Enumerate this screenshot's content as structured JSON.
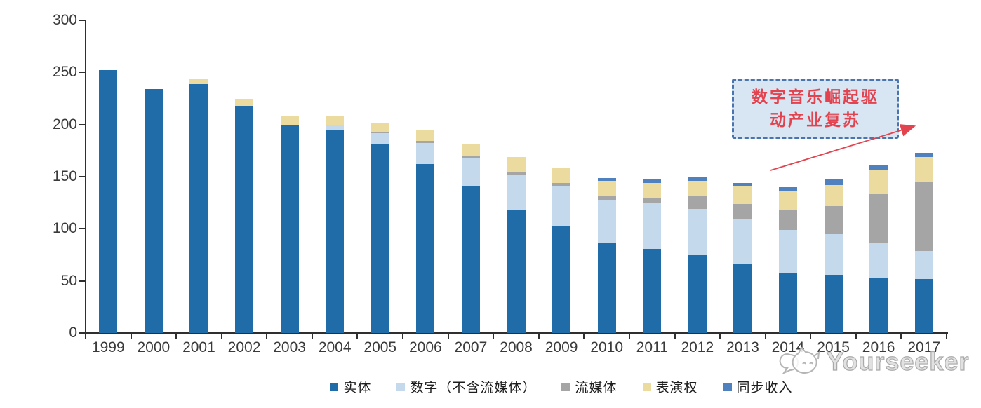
{
  "watermark": {
    "text": "Yourseeker",
    "logo_icon": "cat-speech-bubble-icon"
  },
  "annotation": {
    "full_text": "数字音乐崛起驱动产业复苏",
    "line1": "数字音乐崛起驱",
    "line2": "动产业复苏",
    "border_color": "#4a74ae",
    "fill_color": "#d8e6f3",
    "text_color": "#e2434e",
    "arrow_color": "#e2434e"
  },
  "chart_data": {
    "type": "bar",
    "stacked": true,
    "grid": false,
    "legend_position": "bottom",
    "ylim": [
      0,
      300
    ],
    "yticks": [
      0,
      50,
      100,
      150,
      200,
      250,
      300
    ],
    "categories": [
      "1999",
      "2000",
      "2001",
      "2002",
      "2003",
      "2004",
      "2005",
      "2006",
      "2007",
      "2008",
      "2009",
      "2010",
      "2011",
      "2012",
      "2013",
      "2014",
      "2015",
      "2016",
      "2017"
    ],
    "series": [
      {
        "name": "实体",
        "color": "#1f6ca9",
        "values": [
          252,
          234,
          239,
          218,
          200,
          195,
          181,
          162,
          141,
          118,
          103,
          87,
          81,
          75,
          66,
          58,
          56,
          53,
          52
        ]
      },
      {
        "name": "数字（不含流媒体）",
        "color": "#c5d9ed",
        "values": [
          0,
          0,
          0,
          0,
          0,
          5,
          11,
          20,
          27,
          34,
          38,
          40,
          44,
          44,
          43,
          41,
          39,
          34,
          27
        ]
      },
      {
        "name": "流媒体",
        "color": "#a5a5a5",
        "values": [
          0,
          0,
          0,
          0,
          0,
          0,
          1,
          2,
          2,
          2,
          3,
          4,
          5,
          12,
          15,
          19,
          27,
          46,
          66
        ]
      },
      {
        "name": "表演权",
        "color": "#ebdb9e",
        "values": [
          0,
          0,
          5,
          7,
          8,
          8,
          8,
          11,
          11,
          15,
          14,
          15,
          14,
          15,
          17,
          18,
          20,
          24,
          24
        ]
      },
      {
        "name": "同步收入",
        "color": "#4e81bd",
        "values": [
          0,
          0,
          0,
          0,
          0,
          0,
          0,
          0,
          0,
          0,
          0,
          3,
          3,
          4,
          3,
          4,
          5,
          4,
          4
        ]
      }
    ]
  }
}
